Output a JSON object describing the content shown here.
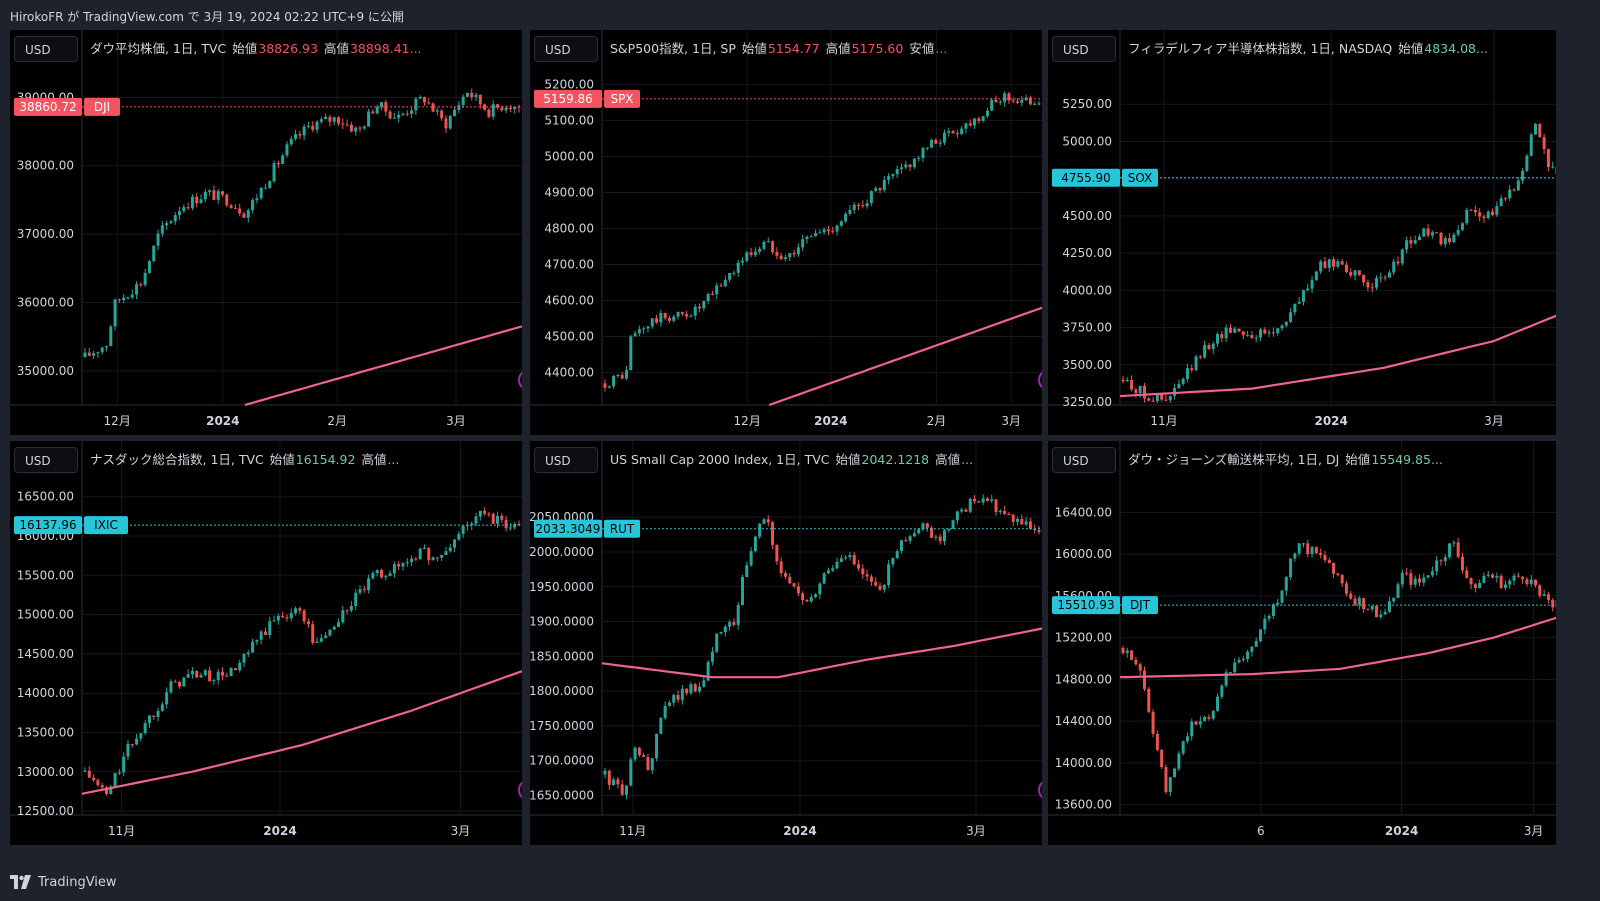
{
  "header": {
    "text": "HirokoFR が TradingView.com で 3月 19, 2024 02:22 UTC+9 に公開"
  },
  "footer": {
    "brand": "TradingView",
    "logo_icon": "tradingview-logo-icon"
  },
  "colors": {
    "up": "#26a69a",
    "down": "#ef5350",
    "ma": "#f06292",
    "red_line": "#f23645",
    "blue_line": "#22c3d6"
  },
  "panels": [
    {
      "currency": "USD",
      "title": "ダウ平均株価, 1日, TVC",
      "ohlc": [
        {
          "label": "始値",
          "value": "38826.93"
        },
        {
          "label": "高値",
          "value": "38898.41..."
        }
      ],
      "ohlc_color": "#f7525f",
      "last_price": "38860.72",
      "symbol": "DJI",
      "badge_color": "#f7525f",
      "alert_dot": true,
      "chart_data": {
        "type": "candlestick",
        "yticks": [
          "35000.00",
          "36000.00",
          "37000.00",
          "38000.00",
          "39000.00"
        ],
        "xticks": [
          "12月",
          "2024",
          "2月",
          "3月"
        ],
        "ylim": [
          34500,
          39400
        ],
        "last": 38860.72,
        "path": [
          [
            0,
            35200
          ],
          [
            0.05,
            35400
          ],
          [
            0.07,
            36000
          ],
          [
            0.13,
            36300
          ],
          [
            0.17,
            37000
          ],
          [
            0.22,
            37400
          ],
          [
            0.28,
            37600
          ],
          [
            0.33,
            37500
          ],
          [
            0.37,
            37300
          ],
          [
            0.42,
            37800
          ],
          [
            0.47,
            38300
          ],
          [
            0.52,
            38600
          ],
          [
            0.58,
            38700
          ],
          [
            0.63,
            38500
          ],
          [
            0.67,
            38900
          ],
          [
            0.72,
            38700
          ],
          [
            0.78,
            39000
          ],
          [
            0.83,
            38600
          ],
          [
            0.88,
            39100
          ],
          [
            0.93,
            38800
          ],
          [
            0.97,
            38900
          ],
          [
            1,
            38860
          ]
        ],
        "ma": [
          [
            0.37,
            34500
          ],
          [
            1,
            35650
          ]
        ]
      }
    },
    {
      "currency": "USD",
      "title": "S&P500指数, 1日, SP",
      "ohlc": [
        {
          "label": "始値",
          "value": "5154.77"
        },
        {
          "label": "高値",
          "value": "5175.60"
        },
        {
          "label": "安値",
          "value": "..."
        }
      ],
      "ohlc_color": "#f7525f",
      "last_price": "5159.86",
      "symbol": "SPX",
      "badge_color": "#f7525f",
      "alert_dot": true,
      "chart_data": {
        "type": "candlestick",
        "yticks": [
          "4400.00",
          "4500.00",
          "4600.00",
          "4700.00",
          "4800.00",
          "4900.00",
          "5000.00",
          "5100.00",
          "5200.00"
        ],
        "xticks": [
          "12月",
          "2024",
          "2月",
          "3月"
        ],
        "ylim": [
          4310,
          5240
        ],
        "last": 5159.86,
        "path": [
          [
            0,
            4370
          ],
          [
            0.05,
            4400
          ],
          [
            0.06,
            4500
          ],
          [
            0.12,
            4550
          ],
          [
            0.18,
            4560
          ],
          [
            0.22,
            4580
          ],
          [
            0.27,
            4650
          ],
          [
            0.32,
            4720
          ],
          [
            0.37,
            4760
          ],
          [
            0.42,
            4720
          ],
          [
            0.47,
            4780
          ],
          [
            0.52,
            4800
          ],
          [
            0.57,
            4850
          ],
          [
            0.62,
            4900
          ],
          [
            0.67,
            4950
          ],
          [
            0.72,
            5000
          ],
          [
            0.77,
            5050
          ],
          [
            0.82,
            5080
          ],
          [
            0.87,
            5120
          ],
          [
            0.92,
            5170
          ],
          [
            0.96,
            5150
          ],
          [
            1,
            5159
          ]
        ],
        "ma": [
          [
            0.38,
            4310
          ],
          [
            1,
            4580
          ]
        ]
      }
    },
    {
      "currency": "USD",
      "title": "フィラデルフィア半導体株指数, 1日, NASDAQ",
      "ohlc": [
        {
          "label": "始値",
          "value": "4834.08..."
        }
      ],
      "ohlc_color": "#6ccba6",
      "last_price": "4755.90",
      "symbol": "SOX",
      "badge_color": "#26c6da",
      "alert_dot": false,
      "chart_data": {
        "type": "candlestick",
        "yticks": [
          "3250.00",
          "3500.00",
          "3750.00",
          "4000.00",
          "4250.00",
          "4500.00",
          "4750.00",
          "5000.00",
          "5250.00"
        ],
        "xticks": [
          "11月",
          "2024",
          "3月"
        ],
        "ylim": [
          3230,
          5480
        ],
        "last": 4755.9,
        "path": [
          [
            0,
            3400
          ],
          [
            0.05,
            3300
          ],
          [
            0.1,
            3250
          ],
          [
            0.15,
            3450
          ],
          [
            0.2,
            3650
          ],
          [
            0.25,
            3750
          ],
          [
            0.3,
            3700
          ],
          [
            0.35,
            3720
          ],
          [
            0.4,
            3900
          ],
          [
            0.45,
            4150
          ],
          [
            0.5,
            4200
          ],
          [
            0.55,
            4050
          ],
          [
            0.6,
            4050
          ],
          [
            0.65,
            4300
          ],
          [
            0.7,
            4400
          ],
          [
            0.75,
            4300
          ],
          [
            0.8,
            4550
          ],
          [
            0.85,
            4500
          ],
          [
            0.9,
            4700
          ],
          [
            0.93,
            4900
          ],
          [
            0.95,
            5150
          ],
          [
            0.98,
            4850
          ],
          [
            1,
            4755
          ]
        ],
        "ma": [
          [
            0,
            3290
          ],
          [
            0.3,
            3340
          ],
          [
            0.6,
            3480
          ],
          [
            0.85,
            3660
          ],
          [
            1,
            3840
          ]
        ]
      }
    },
    {
      "currency": "USD",
      "title": "ナスダック総合指数, 1日, TVC",
      "ohlc": [
        {
          "label": "始値",
          "value": "16154.92"
        },
        {
          "label": "高値",
          "value": "..."
        }
      ],
      "ohlc_color": "#6ccba6",
      "last_price": "16137.96",
      "symbol": "IXIC",
      "badge_color": "#26c6da",
      "alert_dot": true,
      "chart_data": {
        "type": "candlestick",
        "yticks": [
          "12500.00",
          "13000.00",
          "13500.00",
          "14000.00",
          "14500.00",
          "15000.00",
          "15500.00",
          "16000.00",
          "16500.00"
        ],
        "xticks": [
          "11月",
          "2024",
          "3月"
        ],
        "ylim": [
          12450,
          16700
        ],
        "last": 16137.96,
        "path": [
          [
            0,
            13000
          ],
          [
            0.05,
            12700
          ],
          [
            0.1,
            13300
          ],
          [
            0.15,
            13700
          ],
          [
            0.2,
            14100
          ],
          [
            0.25,
            14250
          ],
          [
            0.3,
            14200
          ],
          [
            0.35,
            14300
          ],
          [
            0.4,
            14700
          ],
          [
            0.45,
            15000
          ],
          [
            0.5,
            15050
          ],
          [
            0.53,
            14600
          ],
          [
            0.58,
            14900
          ],
          [
            0.62,
            15200
          ],
          [
            0.67,
            15500
          ],
          [
            0.72,
            15600
          ],
          [
            0.77,
            15800
          ],
          [
            0.82,
            15700
          ],
          [
            0.87,
            16100
          ],
          [
            0.92,
            16300
          ],
          [
            0.96,
            16150
          ],
          [
            1,
            16137
          ]
        ],
        "ma": [
          [
            0,
            12720
          ],
          [
            0.25,
            13000
          ],
          [
            0.5,
            13340
          ],
          [
            0.75,
            13780
          ],
          [
            1,
            14280
          ]
        ]
      }
    },
    {
      "currency": "USD",
      "title": "US Small Cap 2000 Index, 1日, TVC",
      "ohlc": [
        {
          "label": "始値",
          "value": "2042.1218"
        },
        {
          "label": "高値",
          "value": "..."
        }
      ],
      "ohlc_color": "#6ccba6",
      "last_price": "2033.3049",
      "symbol": "RUT",
      "badge_color": "#26c6da",
      "alert_dot": false,
      "chart_data": {
        "type": "candlestick",
        "yticks": [
          "1650.0000",
          "1700.0000",
          "1750.0000",
          "1800.0000",
          "1850.0000",
          "1900.0000",
          "1950.0000",
          "2000.0000",
          "2050.0000"
        ],
        "xticks": [
          "11月",
          "2024",
          "3月"
        ],
        "ylim": [
          1622,
          2102
        ],
        "last": 2033.3049,
        "path": [
          [
            0,
            1680
          ],
          [
            0.04,
            1650
          ],
          [
            0.07,
            1720
          ],
          [
            0.1,
            1690
          ],
          [
            0.14,
            1780
          ],
          [
            0.18,
            1800
          ],
          [
            0.22,
            1810
          ],
          [
            0.26,
            1880
          ],
          [
            0.3,
            1900
          ],
          [
            0.33,
            2000
          ],
          [
            0.37,
            2050
          ],
          [
            0.4,
            1980
          ],
          [
            0.43,
            1950
          ],
          [
            0.47,
            1920
          ],
          [
            0.5,
            1960
          ],
          [
            0.55,
            2000
          ],
          [
            0.6,
            1960
          ],
          [
            0.63,
            1940
          ],
          [
            0.67,
            2000
          ],
          [
            0.72,
            2040
          ],
          [
            0.77,
            2020
          ],
          [
            0.82,
            2060
          ],
          [
            0.87,
            2080
          ],
          [
            0.92,
            2050
          ],
          [
            0.96,
            2040
          ],
          [
            1,
            2033
          ]
        ],
        "ma": [
          [
            0,
            1840
          ],
          [
            0.25,
            1820
          ],
          [
            0.4,
            1820
          ],
          [
            0.6,
            1845
          ],
          [
            0.8,
            1865
          ],
          [
            1,
            1890
          ]
        ]
      }
    },
    {
      "currency": "USD",
      "title": "ダウ・ジョーンズ輸送株平均, 1日, DJ",
      "ohlc": [
        {
          "label": "始値",
          "value": "15549.85..."
        }
      ],
      "ohlc_color": "#6ccba6",
      "last_price": "15510.93",
      "symbol": "DJT",
      "badge_color": "#26c6da",
      "alert_dot": false,
      "chart_data": {
        "type": "candlestick",
        "yticks": [
          "13600.00",
          "14000.00",
          "14400.00",
          "14800.00",
          "15200.00",
          "15600.00",
          "16000.00",
          "16400.00"
        ],
        "xticks": [
          "6",
          "2024",
          "3月"
        ],
        "ylim": [
          13500,
          16700
        ],
        "last": 15510.93,
        "path": [
          [
            0,
            15100
          ],
          [
            0.04,
            14900
          ],
          [
            0.07,
            14300
          ],
          [
            0.1,
            13700
          ],
          [
            0.13,
            14100
          ],
          [
            0.16,
            14400
          ],
          [
            0.2,
            14400
          ],
          [
            0.24,
            14900
          ],
          [
            0.28,
            15000
          ],
          [
            0.32,
            15300
          ],
          [
            0.36,
            15600
          ],
          [
            0.4,
            16100
          ],
          [
            0.44,
            16000
          ],
          [
            0.48,
            15900
          ],
          [
            0.52,
            15600
          ],
          [
            0.56,
            15500
          ],
          [
            0.6,
            15400
          ],
          [
            0.64,
            15800
          ],
          [
            0.68,
            15700
          ],
          [
            0.72,
            15900
          ],
          [
            0.76,
            16100
          ],
          [
            0.8,
            15700
          ],
          [
            0.84,
            15800
          ],
          [
            0.88,
            15700
          ],
          [
            0.92,
            15800
          ],
          [
            0.96,
            15650
          ],
          [
            1,
            15510
          ]
        ],
        "ma": [
          [
            0,
            14820
          ],
          [
            0.3,
            14850
          ],
          [
            0.5,
            14900
          ],
          [
            0.7,
            15050
          ],
          [
            0.85,
            15200
          ],
          [
            1,
            15400
          ]
        ]
      }
    }
  ]
}
